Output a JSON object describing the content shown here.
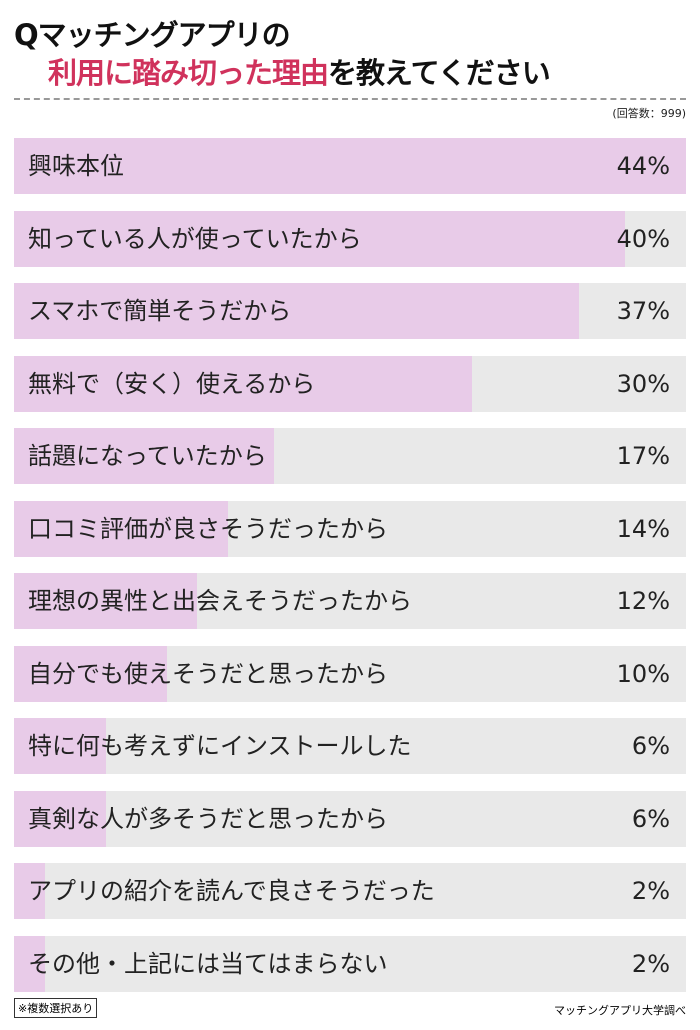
{
  "title_line1": "Qマッチングアプリの",
  "title_line2_highlight": "利用に踏み切った理由",
  "title_line2_rest": "を教えてください",
  "respondents": "(回答数：999)",
  "footnote": "※複数選択あり",
  "source": "マッチングアプリ大学調べ",
  "colors": {
    "bar": "#e8cbe8",
    "track": "#e9e9e9",
    "highlight": "#d0325c"
  },
  "chart_data": {
    "type": "bar",
    "orientation": "horizontal",
    "categories": [
      "興味本位",
      "知っている人が使っていたから",
      "スマホで簡単そうだから",
      "無料で（安く）使えるから",
      "話題になっていたから",
      "口コミ評価が良さそうだったから",
      "理想の異性と出会えそうだったから",
      "自分でも使えそうだと思ったから",
      "特に何も考えずにインストールした",
      "真剣な人が多そうだと思ったから",
      "アプリの紹介を読んで良さそうだった",
      "その他・上記には当てはまらない"
    ],
    "values": [
      44,
      40,
      37,
      30,
      17,
      14,
      12,
      10,
      6,
      6,
      2,
      2
    ],
    "value_labels": [
      "44%",
      "40%",
      "37%",
      "30%",
      "17%",
      "14%",
      "12%",
      "10%",
      "6%",
      "6%",
      "2%",
      "2%"
    ],
    "xlim": [
      0,
      44
    ]
  }
}
